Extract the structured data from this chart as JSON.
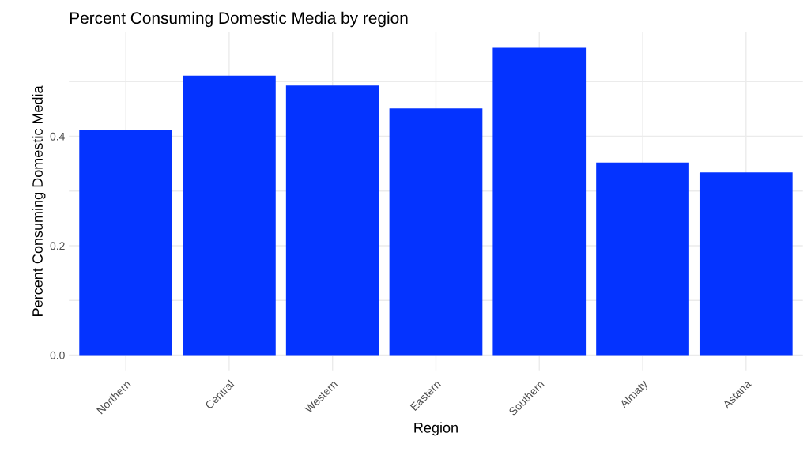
{
  "chart_data": {
    "type": "bar",
    "title": "Percent Consuming Domestic Media by region",
    "xlabel": "Region",
    "ylabel": "Percent Consuming Domestic Media",
    "categories": [
      "Northern",
      "Central",
      "Western",
      "Eastern",
      "Southern",
      "Almaty",
      "Astana"
    ],
    "values": [
      0.411,
      0.511,
      0.493,
      0.451,
      0.562,
      0.352,
      0.334
    ],
    "color": "#0433ff",
    "ylim": [
      -0.028,
      0.59
    ],
    "yticks": [
      {
        "value": 0.0,
        "label": "0.0"
      },
      {
        "value": 0.1,
        "label": null
      },
      {
        "value": 0.2,
        "label": "0.2"
      },
      {
        "value": 0.3,
        "label": null
      },
      {
        "value": 0.4,
        "label": "0.4"
      },
      {
        "value": 0.5,
        "label": null
      }
    ],
    "grid": true
  }
}
